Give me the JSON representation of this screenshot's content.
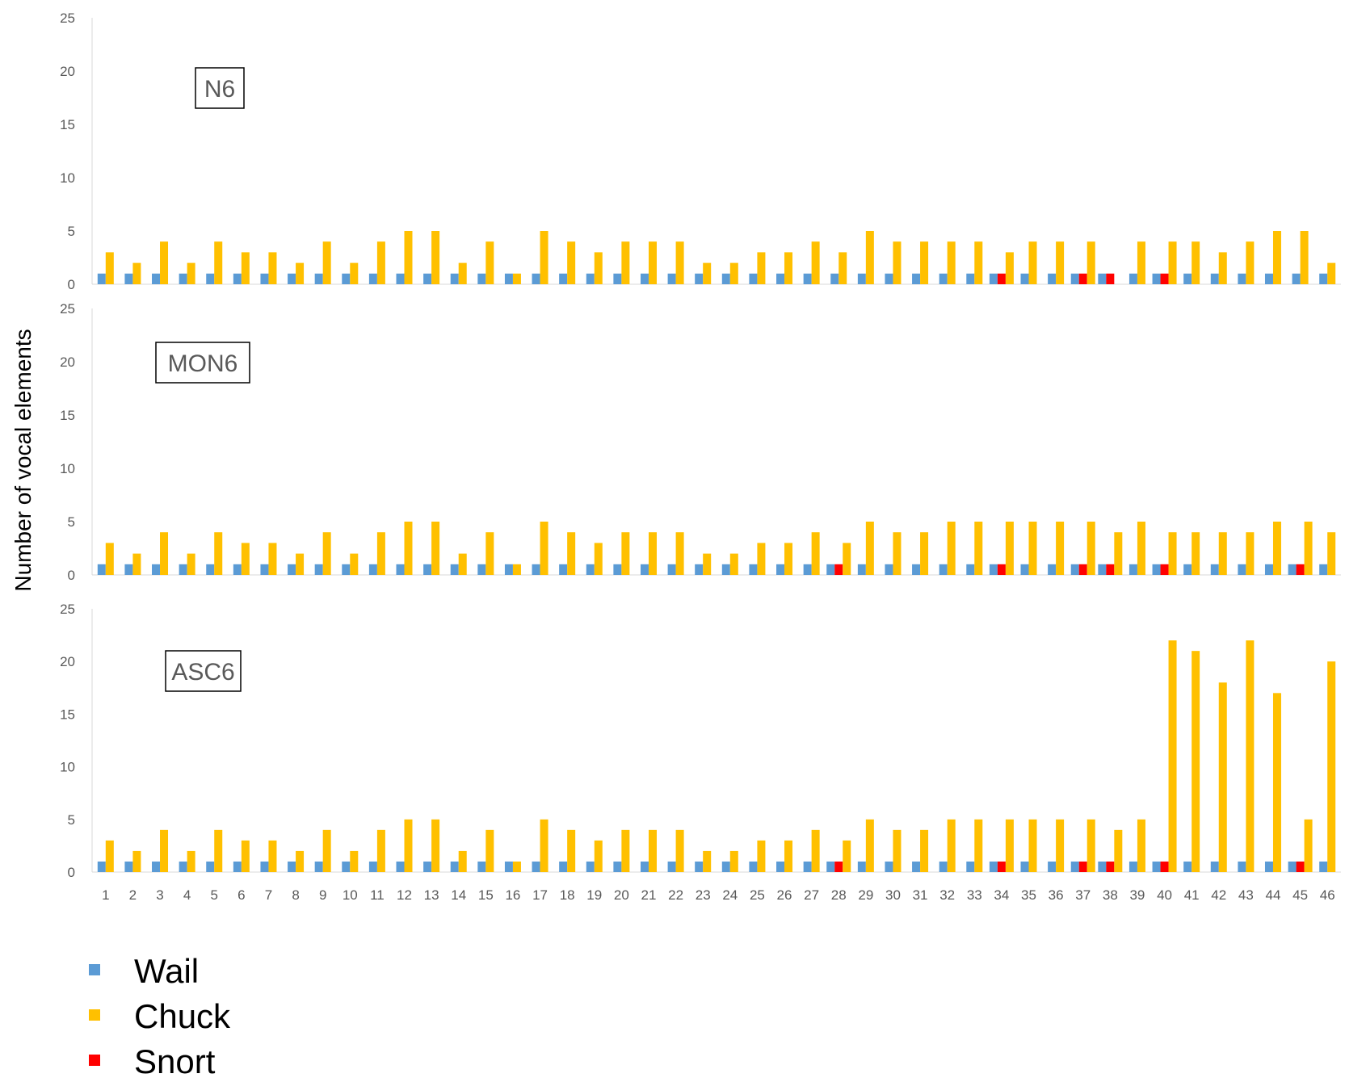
{
  "chart_data": {
    "type": "bar",
    "ylabel": "Number of vocal elements",
    "ylim": [
      0,
      25
    ],
    "yticks": [
      "0",
      "5",
      "10",
      "15",
      "20",
      "25"
    ],
    "grid": false,
    "legend_position": "bottom-left",
    "categories": [
      "1",
      "2",
      "3",
      "4",
      "5",
      "6",
      "7",
      "8",
      "9",
      "10",
      "11",
      "12",
      "13",
      "14",
      "15",
      "16",
      "17",
      "18",
      "19",
      "20",
      "21",
      "22",
      "23",
      "24",
      "25",
      "26",
      "27",
      "28",
      "29",
      "30",
      "31",
      "32",
      "33",
      "34",
      "35",
      "36",
      "37",
      "38",
      "39",
      "40",
      "41",
      "42",
      "43",
      "44",
      "45",
      "46"
    ],
    "series_meta": [
      {
        "name": "Wail",
        "color": "#5B9BD5"
      },
      {
        "name": "Chuck",
        "color": "#FFC000"
      },
      {
        "name": "Snort",
        "color": "#FF0000"
      }
    ],
    "panels": [
      {
        "name": "N6",
        "series": [
          {
            "name": "Wail",
            "values": [
              1,
              1,
              1,
              1,
              1,
              1,
              1,
              1,
              1,
              1,
              1,
              1,
              1,
              1,
              1,
              1,
              1,
              1,
              1,
              1,
              1,
              1,
              1,
              1,
              1,
              1,
              1,
              1,
              1,
              1,
              1,
              1,
              1,
              1,
              1,
              1,
              1,
              1,
              1,
              1,
              1,
              1,
              1,
              1,
              1,
              1
            ]
          },
          {
            "name": "Chuck",
            "values": [
              3,
              2,
              4,
              2,
              4,
              3,
              3,
              2,
              4,
              2,
              4,
              5,
              5,
              2,
              4,
              1,
              5,
              4,
              3,
              4,
              4,
              4,
              2,
              2,
              3,
              3,
              4,
              3,
              5,
              4,
              4,
              4,
              4,
              3,
              4,
              4,
              4,
              0,
              4,
              4,
              4,
              3,
              4,
              5,
              5,
              2
            ]
          },
          {
            "name": "Snort",
            "values": [
              0,
              0,
              0,
              0,
              0,
              0,
              0,
              0,
              0,
              0,
              0,
              0,
              0,
              0,
              0,
              0,
              0,
              0,
              0,
              0,
              0,
              0,
              0,
              0,
              0,
              0,
              0,
              0,
              0,
              0,
              0,
              0,
              0,
              1,
              0,
              0,
              1,
              1,
              0,
              1,
              0,
              0,
              0,
              0,
              0,
              0
            ]
          }
        ]
      },
      {
        "name": "MON6",
        "series": [
          {
            "name": "Wail",
            "values": [
              1,
              1,
              1,
              1,
              1,
              1,
              1,
              1,
              1,
              1,
              1,
              1,
              1,
              1,
              1,
              1,
              1,
              1,
              1,
              1,
              1,
              1,
              1,
              1,
              1,
              1,
              1,
              1,
              1,
              1,
              1,
              1,
              1,
              1,
              1,
              1,
              1,
              1,
              1,
              1,
              1,
              1,
              1,
              1,
              1,
              1
            ]
          },
          {
            "name": "Chuck",
            "values": [
              3,
              2,
              4,
              2,
              4,
              3,
              3,
              2,
              4,
              2,
              4,
              5,
              5,
              2,
              4,
              1,
              5,
              4,
              3,
              4,
              4,
              4,
              2,
              2,
              3,
              3,
              4,
              3,
              5,
              4,
              4,
              5,
              5,
              5,
              5,
              5,
              5,
              4,
              5,
              4,
              4,
              4,
              4,
              5,
              5,
              4
            ]
          },
          {
            "name": "Snort",
            "values": [
              0,
              0,
              0,
              0,
              0,
              0,
              0,
              0,
              0,
              0,
              0,
              0,
              0,
              0,
              0,
              0,
              0,
              0,
              0,
              0,
              0,
              0,
              0,
              0,
              0,
              0,
              0,
              1,
              0,
              0,
              0,
              0,
              0,
              1,
              0,
              0,
              1,
              1,
              0,
              1,
              0,
              0,
              0,
              0,
              1,
              0
            ]
          }
        ]
      },
      {
        "name": "ASC6",
        "series": [
          {
            "name": "Wail",
            "values": [
              1,
              1,
              1,
              1,
              1,
              1,
              1,
              1,
              1,
              1,
              1,
              1,
              1,
              1,
              1,
              1,
              1,
              1,
              1,
              1,
              1,
              1,
              1,
              1,
              1,
              1,
              1,
              1,
              1,
              1,
              1,
              1,
              1,
              1,
              1,
              1,
              1,
              1,
              1,
              1,
              1,
              1,
              1,
              1,
              1,
              1
            ]
          },
          {
            "name": "Chuck",
            "values": [
              3,
              2,
              4,
              2,
              4,
              3,
              3,
              2,
              4,
              2,
              4,
              5,
              5,
              2,
              4,
              1,
              5,
              4,
              3,
              4,
              4,
              4,
              2,
              2,
              3,
              3,
              4,
              3,
              5,
              4,
              4,
              5,
              5,
              5,
              5,
              5,
              5,
              4,
              5,
              22,
              21,
              18,
              22,
              17,
              5,
              20
            ]
          },
          {
            "name": "Snort",
            "values": [
              0,
              0,
              0,
              0,
              0,
              0,
              0,
              0,
              0,
              0,
              0,
              0,
              0,
              0,
              0,
              0,
              0,
              0,
              0,
              0,
              0,
              0,
              0,
              0,
              0,
              0,
              0,
              1,
              0,
              0,
              0,
              0,
              0,
              1,
              0,
              0,
              1,
              1,
              0,
              1,
              0,
              0,
              0,
              0,
              1,
              0
            ]
          }
        ]
      }
    ]
  }
}
